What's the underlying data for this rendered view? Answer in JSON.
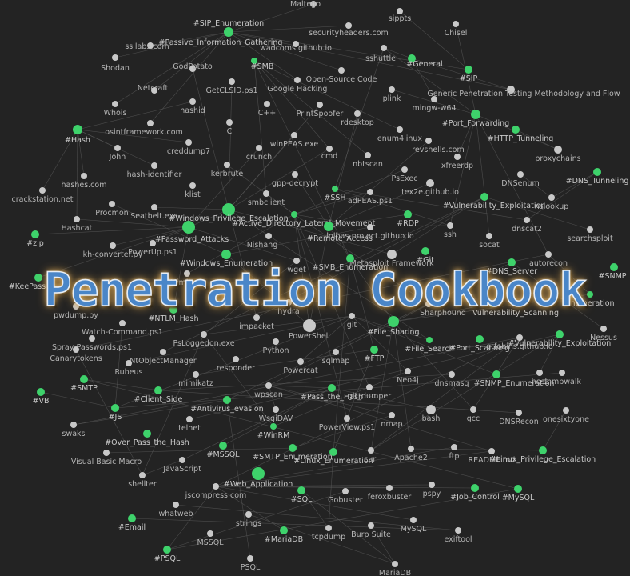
{
  "title": "Penetration Cookbook",
  "colors": {
    "background": "#232323",
    "note": "#c8c8c8",
    "tag": "#3ed26b",
    "edge": "#5a5a5a",
    "title": "#4a86c8"
  },
  "nodes": [
    {
      "label": "Maltego",
      "tag": false
    },
    {
      "label": "#SIP_Enumeration",
      "tag": true
    },
    {
      "label": "sippts",
      "tag": false
    },
    {
      "label": "securityheaders.com",
      "tag": false
    },
    {
      "label": "Chisel",
      "tag": false
    },
    {
      "label": "ssllabs.com",
      "tag": false
    },
    {
      "label": "#Passive_Information_Gathering",
      "tag": true
    },
    {
      "label": "wadcoms.github.io",
      "tag": false
    },
    {
      "label": "sshuttle",
      "tag": false
    },
    {
      "label": "Shodan",
      "tag": false
    },
    {
      "label": "GodPotato",
      "tag": false
    },
    {
      "label": "#SMB",
      "tag": true
    },
    {
      "label": "#General",
      "tag": true
    },
    {
      "label": "#SIP",
      "tag": true
    },
    {
      "label": "Open-Source Code",
      "tag": false
    },
    {
      "label": "Netcraft",
      "tag": false
    },
    {
      "label": "GetCLSID.ps1",
      "tag": false
    },
    {
      "label": "Google Hacking",
      "tag": false
    },
    {
      "label": "Generic Penetration Testing Methodology and Flow",
      "tag": false
    },
    {
      "label": "plink",
      "tag": false
    },
    {
      "label": "mingw-w64",
      "tag": false
    },
    {
      "label": "Whois",
      "tag": false
    },
    {
      "label": "hashid",
      "tag": false
    },
    {
      "label": "C++",
      "tag": false
    },
    {
      "label": "PrintSpoofer",
      "tag": false
    },
    {
      "label": "rdesktop",
      "tag": false
    },
    {
      "label": "#Port_Forwarding",
      "tag": true
    },
    {
      "label": "#Hash",
      "tag": true
    },
    {
      "label": "osintframework.com",
      "tag": false
    },
    {
      "label": "C",
      "tag": false
    },
    {
      "label": "enum4linux",
      "tag": false
    },
    {
      "label": "#HTTP_Tunneling",
      "tag": true
    },
    {
      "label": "creddump7",
      "tag": false
    },
    {
      "label": "winPEAS.exe",
      "tag": false
    },
    {
      "label": "revshells.com",
      "tag": false
    },
    {
      "label": "John",
      "tag": false
    },
    {
      "label": "crunch",
      "tag": false
    },
    {
      "label": "cmd",
      "tag": false
    },
    {
      "label": "xfreerdp",
      "tag": false
    },
    {
      "label": "proxychains",
      "tag": false
    },
    {
      "label": "hash-identifier",
      "tag": false
    },
    {
      "label": "kerbrute",
      "tag": false
    },
    {
      "label": "nbtscan",
      "tag": false
    },
    {
      "label": "#DNS_Tunneling",
      "tag": true
    },
    {
      "label": "hashes.com",
      "tag": false
    },
    {
      "label": "gpp-decrypt",
      "tag": false
    },
    {
      "label": "PsExec",
      "tag": false
    },
    {
      "label": "DNSenum",
      "tag": false
    },
    {
      "label": "klist",
      "tag": false
    },
    {
      "label": "#SSH",
      "tag": true
    },
    {
      "label": "tex2e.github.io",
      "tag": false
    },
    {
      "label": "crackstation.net",
      "tag": false
    },
    {
      "label": "smbclient",
      "tag": false
    },
    {
      "label": "adPEAS.ps1",
      "tag": false
    },
    {
      "label": "#Vulnerability_Exploitation",
      "tag": true
    },
    {
      "label": "nslookup",
      "tag": false
    },
    {
      "label": "Procmon",
      "tag": false
    },
    {
      "label": "Seatbelt.exe",
      "tag": false
    },
    {
      "label": "#Windows_Privilege_Escalation",
      "tag": true
    },
    {
      "label": "#Active_Directory_Lateral_Movement",
      "tag": true
    },
    {
      "label": "#RDP",
      "tag": true
    },
    {
      "label": "Hashcat",
      "tag": false
    },
    {
      "label": "lolbas-project.github.io",
      "tag": false
    },
    {
      "label": "ssh",
      "tag": false
    },
    {
      "label": "dnscat2",
      "tag": false
    },
    {
      "label": "#zip",
      "tag": true
    },
    {
      "label": "#Password_Attacks",
      "tag": true
    },
    {
      "label": "Nishang",
      "tag": false
    },
    {
      "label": "#Remote_Access",
      "tag": true
    },
    {
      "label": "searchsploit",
      "tag": false
    },
    {
      "label": "kh-converter.py",
      "tag": false
    },
    {
      "label": "PowerUp.ps1",
      "tag": false
    },
    {
      "label": "socat",
      "tag": false
    },
    {
      "label": "#Git",
      "tag": true
    },
    {
      "label": "#Windows_Enumeration",
      "tag": true
    },
    {
      "label": "Metasploit Framework",
      "tag": false
    },
    {
      "label": "autorecon",
      "tag": false
    },
    {
      "label": "#SNMP",
      "tag": true
    },
    {
      "label": "#KeePass",
      "tag": true
    },
    {
      "label": "Mimikatz",
      "tag": false
    },
    {
      "label": "wget",
      "tag": false
    },
    {
      "label": "#SMB_Enumeration",
      "tag": true
    },
    {
      "label": "#DNS_Server",
      "tag": true
    },
    {
      "label": "pwdump.py",
      "tag": false
    },
    {
      "label": "#NTLM_Hash",
      "tag": true
    },
    {
      "label": "hydra",
      "tag": false
    },
    {
      "label": "git",
      "tag": false
    },
    {
      "label": "Sharphound",
      "tag": false
    },
    {
      "label": "Vulnerability_Scanning",
      "tag": true
    },
    {
      "label": "Enumeration",
      "tag": true
    },
    {
      "label": "Watch-Command.ps1",
      "tag": false
    },
    {
      "label": "impacket",
      "tag": false
    },
    {
      "label": "PowerShell",
      "tag": false
    },
    {
      "label": "#File_Sharing",
      "tag": true
    },
    {
      "label": "Nessus",
      "tag": false
    },
    {
      "label": "Spray-Passwords.ps1",
      "tag": false
    },
    {
      "label": "PsLoggedon.exe",
      "tag": false
    },
    {
      "label": "#File_Search",
      "tag": true
    },
    {
      "label": "#Port_Scanning",
      "tag": true
    },
    {
      "label": "gtfobins.github.io",
      "tag": false
    },
    {
      "label": "#Vulnerability_Exploitation",
      "tag": true
    },
    {
      "label": "Canarytokens",
      "tag": false
    },
    {
      "label": "NtObjectManager",
      "tag": false
    },
    {
      "label": "Python",
      "tag": false
    },
    {
      "label": "#FTP",
      "tag": true
    },
    {
      "label": "sqlmap",
      "tag": false
    },
    {
      "label": "Rubeus",
      "tag": false
    },
    {
      "label": "responder",
      "tag": false
    },
    {
      "label": "Powercat",
      "tag": false
    },
    {
      "label": "Neo4j",
      "tag": false
    },
    {
      "label": "dnsmasq",
      "tag": false
    },
    {
      "label": "host",
      "tag": false
    },
    {
      "label": "snmpwalk",
      "tag": false
    },
    {
      "label": "#SMTP",
      "tag": true
    },
    {
      "label": "mimikatz",
      "tag": false
    },
    {
      "label": "#SNMP_Enumeration",
      "tag": true
    },
    {
      "label": "#VB",
      "tag": true
    },
    {
      "label": "#Client_Side",
      "tag": true
    },
    {
      "label": "wpscan",
      "tag": false
    },
    {
      "label": "#Pass_the_Hash",
      "tag": true
    },
    {
      "label": "git_dumper",
      "tag": false
    },
    {
      "label": "#JS",
      "tag": true
    },
    {
      "label": "#Antivirus_evasion",
      "tag": true
    },
    {
      "label": "WsgiDAV",
      "tag": false
    },
    {
      "label": "bash",
      "tag": false
    },
    {
      "label": "gcc",
      "tag": false
    },
    {
      "label": "DNSRecon",
      "tag": false
    },
    {
      "label": "onesixtyone",
      "tag": false
    },
    {
      "label": "swaks",
      "tag": false
    },
    {
      "label": "telnet",
      "tag": false
    },
    {
      "label": "PowerView.ps1",
      "tag": false
    },
    {
      "label": "nmap",
      "tag": false
    },
    {
      "label": "#WinRM",
      "tag": true
    },
    {
      "label": "#Over_Pass_the_Hash",
      "tag": true
    },
    {
      "label": "Visual Basic Macro",
      "tag": false
    },
    {
      "label": "#MSSQL",
      "tag": true
    },
    {
      "label": "#SMTP_Enumeration",
      "tag": true
    },
    {
      "label": "#Linux_Enumeration",
      "tag": true
    },
    {
      "label": "curl",
      "tag": false
    },
    {
      "label": "Apache2",
      "tag": false
    },
    {
      "label": "ftp",
      "tag": false
    },
    {
      "label": "README.md",
      "tag": false
    },
    {
      "label": "#Linux_Privilege_Escalation",
      "tag": true
    },
    {
      "label": "JavaScript",
      "tag": false
    },
    {
      "label": "shellter",
      "tag": false
    },
    {
      "label": "#Web_Application",
      "tag": true
    },
    {
      "label": "jscompress.com",
      "tag": false
    },
    {
      "label": "#SQL",
      "tag": true
    },
    {
      "label": "Gobuster",
      "tag": false
    },
    {
      "label": "feroxbuster",
      "tag": false
    },
    {
      "label": "pspy",
      "tag": false
    },
    {
      "label": "#Job_Control",
      "tag": true
    },
    {
      "label": "#MySQL",
      "tag": true
    },
    {
      "label": "whatweb",
      "tag": false
    },
    {
      "label": "strings",
      "tag": false
    },
    {
      "label": "#Email",
      "tag": true
    },
    {
      "label": "MSSQL",
      "tag": false
    },
    {
      "label": "#MariaDB",
      "tag": true
    },
    {
      "label": "tcpdump",
      "tag": false
    },
    {
      "label": "Burp Suite",
      "tag": false
    },
    {
      "label": "MySQL",
      "tag": false
    },
    {
      "label": "exiftool",
      "tag": false
    },
    {
      "label": "#PSQL",
      "tag": true
    },
    {
      "label": "PSQL",
      "tag": false
    },
    {
      "label": "MariaDB",
      "tag": false
    }
  ]
}
